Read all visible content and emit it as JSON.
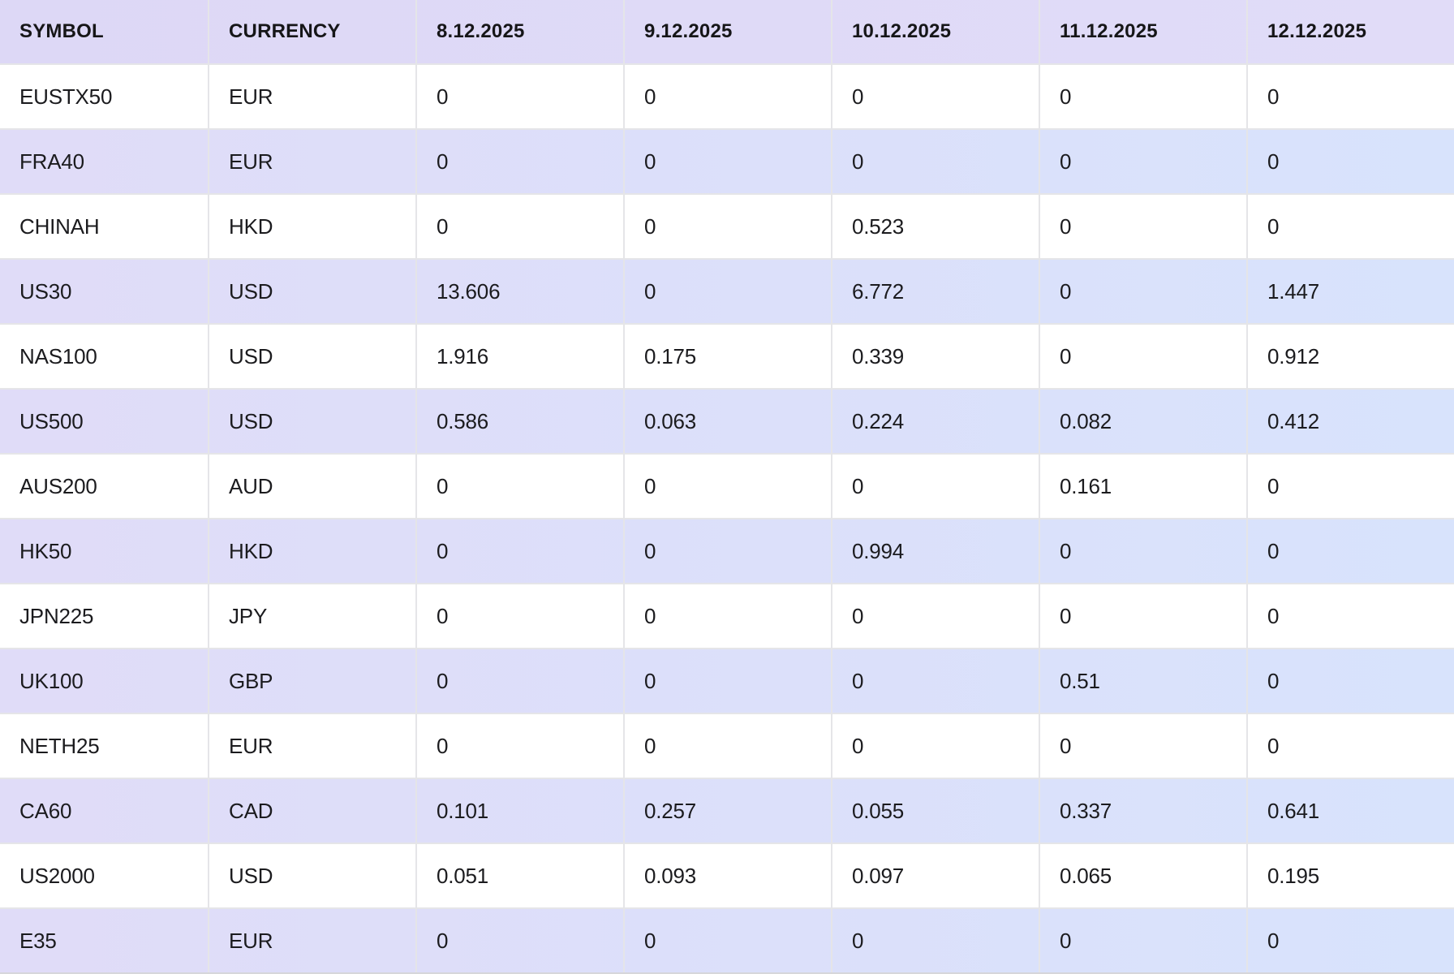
{
  "table": {
    "columns": [
      "SYMBOL",
      "CURRENCY",
      "8.12.2025",
      "9.12.2025",
      "10.12.2025",
      "11.12.2025",
      "12.12.2025"
    ],
    "rows": [
      {
        "symbol": "EUSTX50",
        "currency": "EUR",
        "values": [
          "0",
          "0",
          "0",
          "0",
          "0"
        ]
      },
      {
        "symbol": "FRA40",
        "currency": "EUR",
        "values": [
          "0",
          "0",
          "0",
          "0",
          "0"
        ]
      },
      {
        "symbol": "CHINAH",
        "currency": "HKD",
        "values": [
          "0",
          "0",
          "0.523",
          "0",
          "0"
        ]
      },
      {
        "symbol": "US30",
        "currency": "USD",
        "values": [
          "13.606",
          "0",
          "6.772",
          "0",
          "1.447"
        ]
      },
      {
        "symbol": "NAS100",
        "currency": "USD",
        "values": [
          "1.916",
          "0.175",
          "0.339",
          "0",
          "0.912"
        ]
      },
      {
        "symbol": "US500",
        "currency": "USD",
        "values": [
          "0.586",
          "0.063",
          "0.224",
          "0.082",
          "0.412"
        ]
      },
      {
        "symbol": "AUS200",
        "currency": "AUD",
        "values": [
          "0",
          "0",
          "0",
          "0.161",
          "0"
        ]
      },
      {
        "symbol": "HK50",
        "currency": "HKD",
        "values": [
          "0",
          "0",
          "0.994",
          "0",
          "0"
        ]
      },
      {
        "symbol": "JPN225",
        "currency": "JPY",
        "values": [
          "0",
          "0",
          "0",
          "0",
          "0"
        ]
      },
      {
        "symbol": "UK100",
        "currency": "GBP",
        "values": [
          "0",
          "0",
          "0",
          "0.51",
          "0"
        ]
      },
      {
        "symbol": "NETH25",
        "currency": "EUR",
        "values": [
          "0",
          "0",
          "0",
          "0",
          "0"
        ]
      },
      {
        "symbol": "CA60",
        "currency": "CAD",
        "values": [
          "0.101",
          "0.257",
          "0.055",
          "0.337",
          "0.641"
        ]
      },
      {
        "symbol": "US2000",
        "currency": "USD",
        "values": [
          "0.051",
          "0.093",
          "0.097",
          "0.065",
          "0.195"
        ]
      },
      {
        "symbol": "E35",
        "currency": "EUR",
        "values": [
          "0",
          "0",
          "0",
          "0",
          "0"
        ]
      }
    ]
  },
  "colors": {
    "header_bg_left": "#ddd8f6",
    "header_bg_right": "#e1dcf8",
    "stripe_bg_left": "#e0dcf8",
    "stripe_bg_right": "#d8e3fc",
    "row_bg": "#ffffff",
    "grid_line": "#e5e5e8",
    "bottom_line": "#d6d6da",
    "text": "#1b1b1e",
    "header_text": "#161618"
  }
}
